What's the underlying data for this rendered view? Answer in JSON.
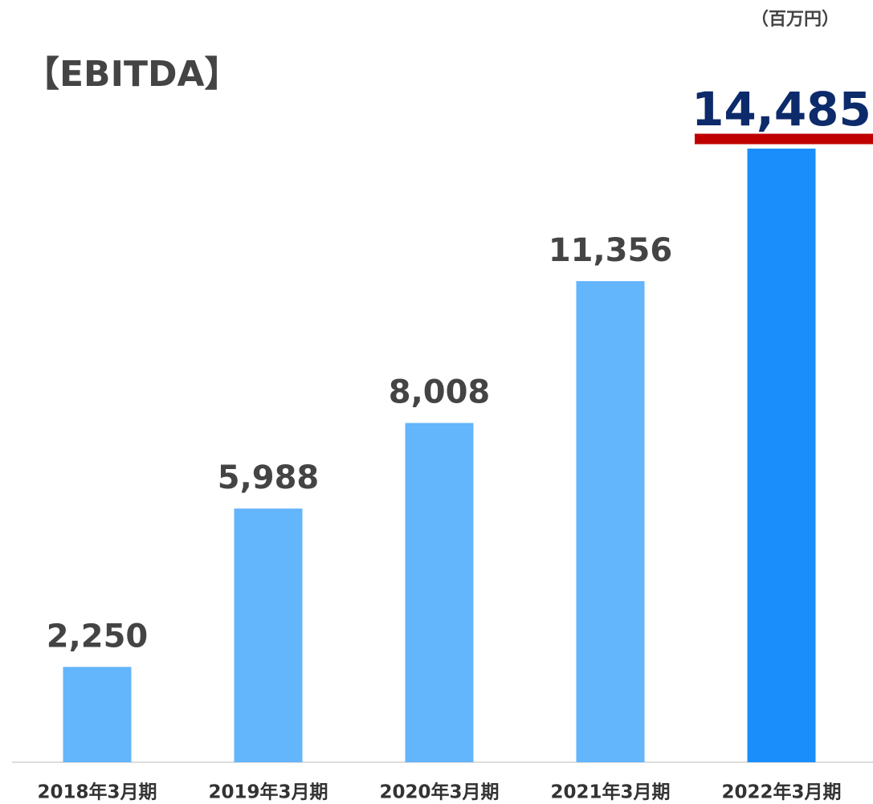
{
  "chart_data": {
    "type": "bar",
    "title": "【EBITDA】",
    "unit_label": "（百万円）",
    "categories": [
      "2018年3月期",
      "2019年3月期",
      "2020年3月期",
      "2021年3月期",
      "2022年3月期"
    ],
    "values": [
      2250,
      5988,
      8008,
      11356,
      14485
    ],
    "value_labels": [
      "2,250",
      "5,988",
      "8,008",
      "11,356",
      "14,485"
    ],
    "colors": [
      "#63b5fc",
      "#63b5fc",
      "#63b5fc",
      "#63b5fc",
      "#1a8ffc"
    ]
  }
}
